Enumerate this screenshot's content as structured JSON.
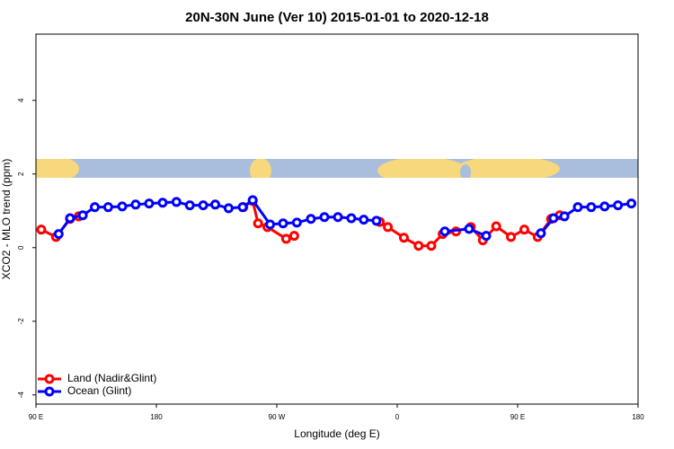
{
  "chart_data": {
    "type": "line",
    "title": "20N-30N June (Ver 10)   2015-01-01 to 2020-12-18",
    "x_label": "Longitude (deg E)",
    "y_label": "XCO2 - MLO trend (ppm)",
    "xlim": [
      90,
      540
    ],
    "xticks": [
      {
        "value": 90,
        "label": "90 E"
      },
      180,
      {
        "value": 270,
        "label": "90 W"
      },
      {
        "value": 360,
        "label": "0"
      },
      {
        "value": 450,
        "label": "90 E"
      },
      180
    ],
    "ylim": [
      -4.25,
      5.8
    ],
    "yticks": [
      -4,
      -2,
      0,
      2,
      4
    ],
    "legend": "bottom-left",
    "series": [
      {
        "name": "Land (Nadir&Glint)",
        "color": "#ff0000",
        "x": [
          94,
          105,
          115.5,
          122,
          null,
          245,
          252,
          256,
          263,
          277,
          283,
          null,
          347,
          353,
          365,
          376,
          385.5,
          394,
          404,
          415,
          424,
          434,
          445,
          455,
          465,
          475,
          481.5
        ],
        "values": [
          0.49,
          0.29,
          0.78,
          0.85,
          null,
          1.1,
          1.27,
          0.66,
          0.56,
          0.24,
          0.32,
          null,
          0.7,
          0.56,
          0.27,
          0.05,
          0.05,
          0.37,
          0.44,
          0.56,
          0.2,
          0.58,
          0.29,
          0.49,
          0.29,
          0.78,
          0.88
        ]
      },
      {
        "name": "Ocean (Glint)",
        "color": "#0000ff",
        "x": [
          107,
          115.5,
          125,
          134,
          144,
          154.5,
          164.5,
          174.6,
          184.7,
          195,
          205,
          215,
          224,
          234,
          244.5,
          252,
          265,
          274.7,
          285,
          295.5,
          305.6,
          315.7,
          325.7,
          335,
          344.5,
          null,
          395.6,
          413.7,
          426.5,
          null,
          467.4,
          476.8,
          485,
          495,
          505,
          515,
          525,
          535
        ],
        "values": [
          0.37,
          0.8,
          0.88,
          1.1,
          1.1,
          1.12,
          1.17,
          1.2,
          1.22,
          1.24,
          1.15,
          1.15,
          1.17,
          1.07,
          1.1,
          1.29,
          0.63,
          0.66,
          0.68,
          0.78,
          0.83,
          0.83,
          0.8,
          0.76,
          0.73,
          null,
          0.44,
          0.51,
          0.32,
          null,
          0.39,
          0.8,
          0.85,
          1.1,
          1.1,
          1.12,
          1.15,
          1.2
        ]
      }
    ]
  }
}
